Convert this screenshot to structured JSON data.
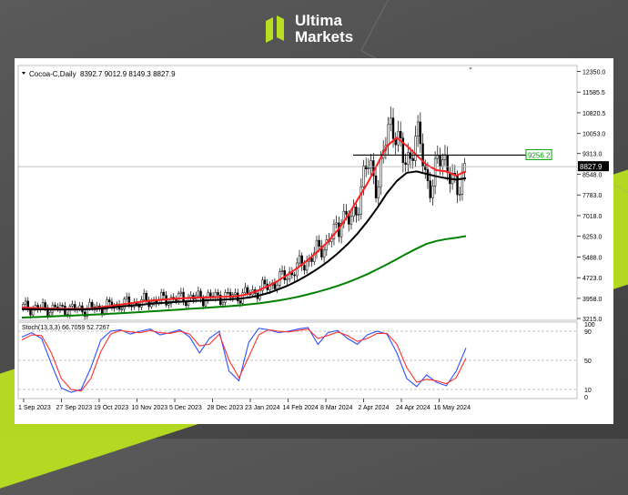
{
  "brand": {
    "line1": "Ultima",
    "line2": "Markets",
    "logo_icon": "ultima-logo-icon"
  },
  "chart_data": [
    {
      "type": "candlestick",
      "title": "Cocoa-C,Daily",
      "ohlc": "8392.7 9012.9 8149.3 8827.9",
      "y_ticks": [
        "12350.0",
        "11585.5",
        "10820.5",
        "10053.0",
        "9313.0",
        "8548.0",
        "7783.0",
        "7018.0",
        "6253.0",
        "5488.0",
        "4723.0",
        "3958.0",
        "3215.0"
      ],
      "ylim": [
        3215,
        12500
      ],
      "x_ticks": [
        "1 Sep 2023",
        "27 Sep 2023",
        "19 Oct 2023",
        "10 Nov 2023",
        "5 Dec 2023",
        "28 Dec 2023",
        "23 Jan 2024",
        "14 Feb 2024",
        "8 Mar 2024",
        "2 Apr 2024",
        "24 Apr 2024",
        "16 May 2024"
      ],
      "current_price": "8827.9",
      "horizontal_level": "9256.2",
      "series": [
        {
          "name": "",
          "color": "#ff2020",
          "values": [
            3620,
            3605,
            3590,
            3580,
            3570,
            3570,
            3560,
            3585,
            3630,
            3680,
            3730,
            3780,
            3830,
            3870,
            3905,
            3935,
            3955,
            3975,
            3990,
            4000,
            4010,
            4025,
            4050,
            4130,
            4260,
            4420,
            4620,
            4850,
            5100,
            5380,
            5700,
            6050,
            6480,
            7000,
            7600,
            8200,
            8900,
            9600,
            9900,
            9600,
            9250,
            8900,
            8700,
            8650,
            8500,
            8650
          ]
        },
        {
          "name": "",
          "color": "#000000",
          "values": [
            3560,
            3555,
            3550,
            3548,
            3545,
            3545,
            3548,
            3560,
            3585,
            3620,
            3655,
            3690,
            3720,
            3755,
            3785,
            3812,
            3835,
            3855,
            3872,
            3890,
            3905,
            3920,
            3945,
            3990,
            4060,
            4160,
            4290,
            4440,
            4620,
            4830,
            5060,
            5320,
            5620,
            5960,
            6350,
            6800,
            7300,
            7850,
            8300,
            8600,
            8650,
            8560,
            8470,
            8400,
            8350,
            8400
          ]
        },
        {
          "name": "",
          "color": "#008000",
          "values": [
            3250,
            3262,
            3275,
            3290,
            3305,
            3320,
            3335,
            3352,
            3370,
            3390,
            3410,
            3430,
            3452,
            3474,
            3497,
            3520,
            3545,
            3570,
            3595,
            3620,
            3645,
            3670,
            3700,
            3735,
            3775,
            3825,
            3880,
            3945,
            4020,
            4105,
            4200,
            4305,
            4420,
            4550,
            4695,
            4855,
            5030,
            5215,
            5410,
            5610,
            5800,
            5970,
            6080,
            6150,
            6200,
            6260
          ]
        }
      ]
    },
    {
      "type": "line",
      "title": "Stoch(13,3,3) 66.7059 52.7267",
      "y_ticks": [
        "100",
        "90",
        "50",
        "10",
        "0"
      ],
      "ylim": [
        0,
        100
      ],
      "series": [
        {
          "name": "",
          "color": "#3050ff",
          "values": [
            82,
            88,
            80,
            45,
            12,
            6,
            10,
            40,
            78,
            90,
            92,
            86,
            90,
            93,
            85,
            88,
            92,
            82,
            60,
            80,
            90,
            35,
            22,
            75,
            94,
            92,
            88,
            90,
            93,
            95,
            72,
            88,
            91,
            80,
            72,
            85,
            90,
            86,
            60,
            25,
            14,
            30,
            20,
            15,
            35,
            67
          ]
        },
        {
          "name": "",
          "color": "#ff3030",
          "values": [
            78,
            85,
            84,
            60,
            25,
            10,
            8,
            25,
            62,
            86,
            91,
            89,
            88,
            91,
            88,
            87,
            90,
            86,
            70,
            72,
            86,
            50,
            26,
            55,
            85,
            92,
            90,
            89,
            91,
            93,
            80,
            84,
            89,
            84,
            76,
            80,
            87,
            87,
            72,
            40,
            20,
            24,
            22,
            18,
            26,
            53
          ]
        }
      ]
    }
  ]
}
